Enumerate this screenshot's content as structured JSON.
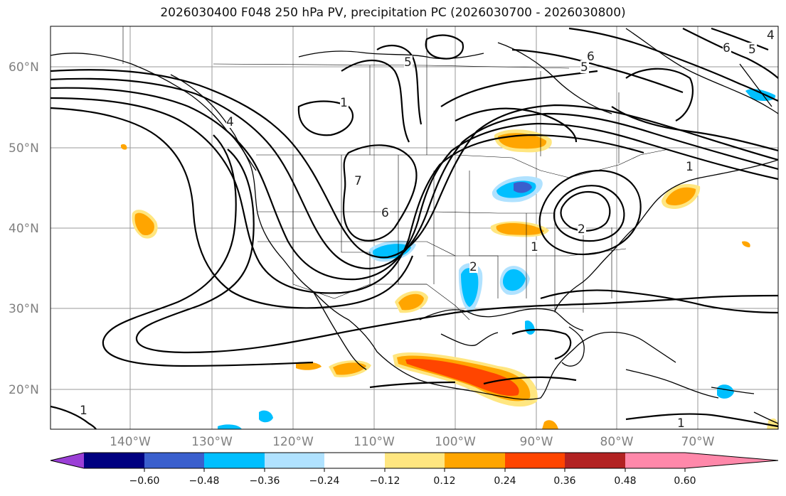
{
  "title": "2026030400 F048 250 hPa PV, precipitation PC (2026030700 - 2026030800)",
  "lat_labels": [
    "60°N",
    "50°N",
    "40°N",
    "30°N",
    "20°N"
  ],
  "lon_labels": [
    "140°W",
    "130°W",
    "120°W",
    "110°W",
    "100°W",
    "90°W",
    "80°W",
    "70°W"
  ],
  "colorbar": {
    "tick_labels": [
      "−0.60",
      "−0.48",
      "−0.36",
      "−0.24",
      "−0.12",
      "0.12",
      "0.24",
      "0.36",
      "0.48",
      "0.60"
    ],
    "colors": [
      "#9b3fd6",
      "#000080",
      "#3a5fcd",
      "#00bfff",
      "#b0e2ff",
      "#ffffff",
      "#ffe680",
      "#ffa500",
      "#ff4500",
      "#b22222",
      "#ff88aa"
    ]
  },
  "contour_labels": [
    "4",
    "1",
    "7",
    "6",
    "5",
    "6",
    "5",
    "2",
    "1",
    "2",
    "1",
    "1",
    "1",
    "6",
    "5",
    "4"
  ]
}
